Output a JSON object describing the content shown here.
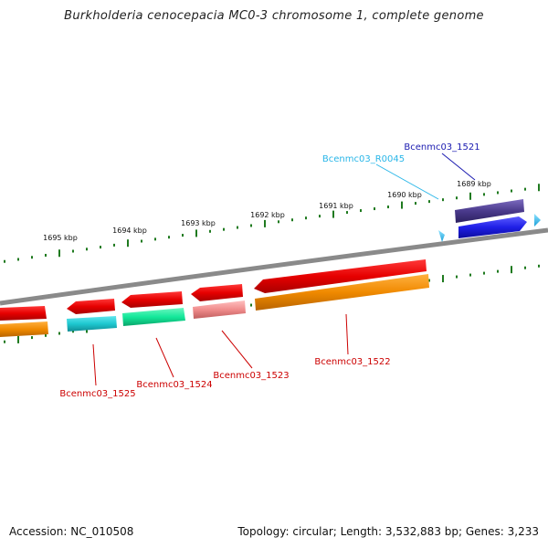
{
  "title": "Burkholderia cenocepacia MC0-3 chromosome 1, complete genome",
  "footer": {
    "accession": "Accession: NC_010508",
    "topology": "Topology: circular; Length: 3,532,883 bp; Genes: 3,233"
  },
  "ticks": [
    {
      "label": "1689 kbp",
      "kbp": 1689
    },
    {
      "label": "1690 kbp",
      "kbp": 1690
    },
    {
      "label": "1691 kbp",
      "kbp": 1691
    },
    {
      "label": "1692 kbp",
      "kbp": 1692
    },
    {
      "label": "1693 kbp",
      "kbp": 1693
    },
    {
      "label": "1694 kbp",
      "kbp": 1694
    },
    {
      "label": "1695 kbp",
      "kbp": 1695
    }
  ],
  "genes": [
    {
      "label": "Bcenmc03_1521",
      "strand": "+",
      "color": "#1f1fe6",
      "label_color": "#1a1ab0"
    },
    {
      "label": "Bcenmc03_R0045",
      "strand": "+",
      "color": "#29b6e8",
      "label_color": "#29b6e8"
    },
    {
      "label": "Bcenmc03_1522",
      "strand": "-",
      "color": "#e60000",
      "label_color": "#cc0000"
    },
    {
      "label": "Bcenmc03_1523",
      "strand": "-",
      "color": "#e60000",
      "label_color": "#cc0000"
    },
    {
      "label": "Bcenmc03_1524",
      "strand": "-",
      "color": "#e60000",
      "label_color": "#cc0000"
    },
    {
      "label": "Bcenmc03_1525",
      "strand": "-",
      "color": "#e60000",
      "label_color": "#cc0000"
    }
  ],
  "colors": {
    "backbone": "#8a8a8a",
    "tick_dots": "#1f7a1f",
    "cog_orange": "#f08a00",
    "cog_cyan": "#1ec8d0",
    "cog_green": "#14e89a",
    "cog_pink": "#f08c8c",
    "cog_purple": "#4a3a8c"
  }
}
